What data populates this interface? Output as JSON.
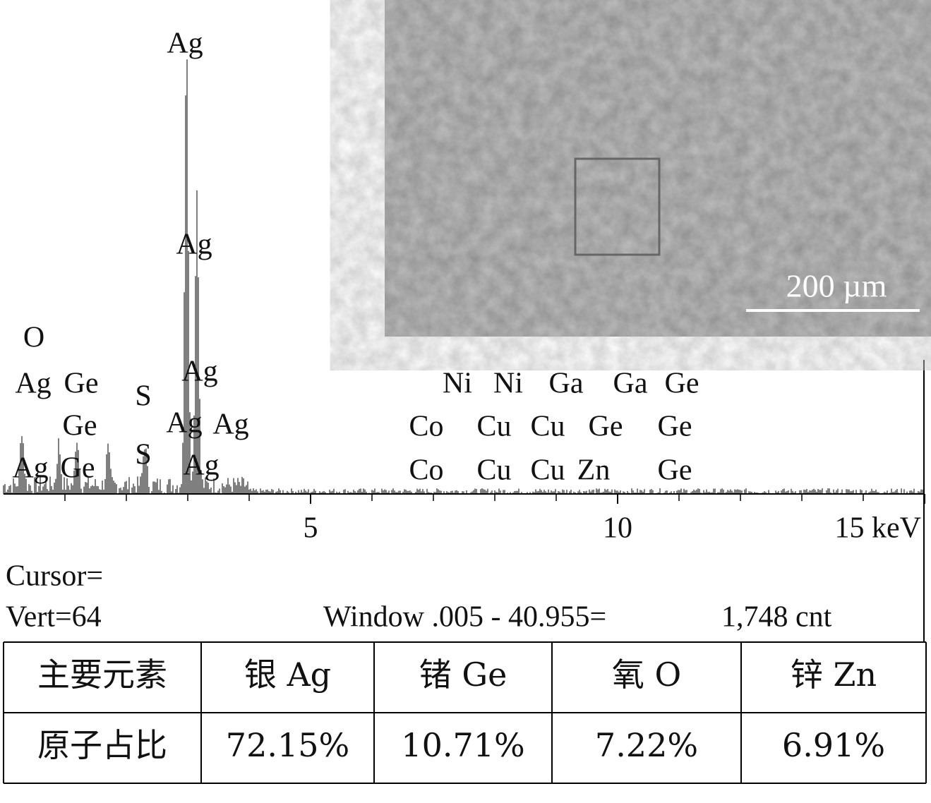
{
  "spectrum": {
    "xlim": [
      0,
      15
    ],
    "xticks": [
      5,
      10,
      {
        "value": 15,
        "label": "15 keV"
      }
    ],
    "peak_labels": [
      "Ag",
      "Ag",
      "O",
      "Ag",
      "Ge",
      "S",
      "Ag",
      "Ge",
      "S",
      "Ag",
      "Ag",
      "Ag",
      "Ge",
      "Ag",
      "Ni",
      "Ni",
      "Ga",
      "Ga",
      "Ge",
      "Co",
      "Cu",
      "Cu",
      "Ge",
      "Ge",
      "Co",
      "Cu",
      "Cu",
      "Zn",
      "Ge"
    ]
  },
  "status": {
    "cursor": "Cursor=",
    "vert": "Vert=64",
    "window": "Window .005 - 40.955=",
    "count": "1,748 cnt"
  },
  "image": {
    "scale_bar": "200 µm"
  },
  "table": {
    "rows": [
      [
        "主要元素",
        "银 Ag",
        "锗 Ge",
        "氧 O",
        "锌 Zn"
      ],
      [
        "原子占比",
        "72.15%",
        "10.71%",
        "7.22%",
        "6.91%"
      ]
    ]
  }
}
